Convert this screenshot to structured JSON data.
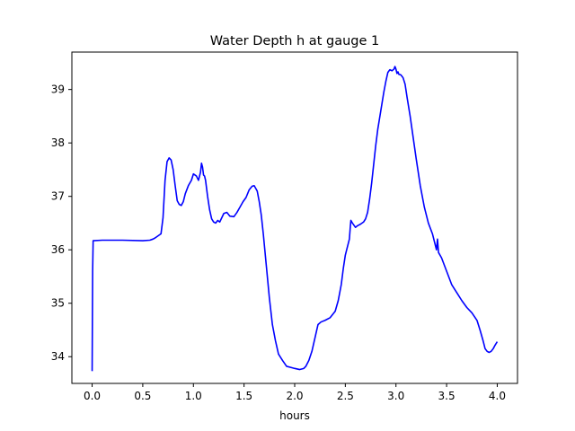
{
  "chart_data": {
    "type": "line",
    "title": "Water Depth h at gauge 1",
    "xlabel": "hours",
    "ylabel": "",
    "xlim": [
      -0.2,
      4.2
    ],
    "ylim": [
      33.5,
      39.7
    ],
    "xticks": [
      0.0,
      0.5,
      1.0,
      1.5,
      2.0,
      2.5,
      3.0,
      3.5,
      4.0
    ],
    "xtick_labels": [
      "0.0",
      "0.5",
      "1.0",
      "1.5",
      "2.0",
      "2.5",
      "3.0",
      "3.5",
      "4.0"
    ],
    "yticks": [
      34,
      35,
      36,
      37,
      38,
      39
    ],
    "ytick_labels": [
      "34",
      "35",
      "36",
      "37",
      "38",
      "39"
    ],
    "grid": false,
    "series": [
      {
        "color": "#0000ff",
        "x": [
          0.0,
          0.005,
          0.01,
          0.1,
          0.3,
          0.5,
          0.57,
          0.6,
          0.62,
          0.65,
          0.68,
          0.7,
          0.72,
          0.74,
          0.76,
          0.78,
          0.8,
          0.82,
          0.84,
          0.86,
          0.88,
          0.9,
          0.92,
          0.95,
          0.98,
          1.0,
          1.03,
          1.05,
          1.07,
          1.08,
          1.09,
          1.1,
          1.11,
          1.12,
          1.14,
          1.16,
          1.18,
          1.2,
          1.22,
          1.24,
          1.26,
          1.28,
          1.3,
          1.33,
          1.36,
          1.4,
          1.43,
          1.46,
          1.49,
          1.52,
          1.55,
          1.58,
          1.6,
          1.63,
          1.65,
          1.67,
          1.69,
          1.71,
          1.73,
          1.75,
          1.78,
          1.81,
          1.84,
          1.88,
          1.92,
          1.96,
          2.0,
          2.05,
          2.09,
          2.11,
          2.14,
          2.17,
          2.2,
          2.23,
          2.26,
          2.3,
          2.35,
          2.4,
          2.43,
          2.46,
          2.48,
          2.5,
          2.52,
          2.54,
          2.55,
          2.555,
          2.57,
          2.6,
          2.62,
          2.65,
          2.68,
          2.7,
          2.72,
          2.74,
          2.76,
          2.78,
          2.8,
          2.82,
          2.85,
          2.88,
          2.9,
          2.92,
          2.94,
          2.96,
          2.98,
          2.99,
          3.0,
          3.01,
          3.02,
          3.03,
          3.04,
          3.05,
          3.07,
          3.09,
          3.11,
          3.14,
          3.17,
          3.2,
          3.24,
          3.28,
          3.32,
          3.36,
          3.4,
          3.41,
          3.42,
          3.45,
          3.5,
          3.55,
          3.6,
          3.65,
          3.7,
          3.75,
          3.8,
          3.83,
          3.86,
          3.88,
          3.9,
          3.92,
          3.94,
          3.96,
          3.98,
          4.0
        ],
        "y": [
          33.73,
          35.6,
          36.17,
          36.18,
          36.18,
          36.17,
          36.18,
          36.2,
          36.22,
          36.26,
          36.3,
          36.6,
          37.3,
          37.65,
          37.72,
          37.68,
          37.5,
          37.2,
          36.92,
          36.85,
          36.83,
          36.9,
          37.05,
          37.2,
          37.3,
          37.42,
          37.38,
          37.3,
          37.45,
          37.62,
          37.55,
          37.4,
          37.38,
          37.3,
          37.0,
          36.75,
          36.58,
          36.52,
          36.5,
          36.55,
          36.52,
          36.6,
          36.68,
          36.7,
          36.63,
          36.62,
          36.7,
          36.8,
          36.9,
          36.98,
          37.12,
          37.19,
          37.2,
          37.1,
          36.9,
          36.65,
          36.3,
          35.9,
          35.5,
          35.1,
          34.6,
          34.3,
          34.05,
          33.93,
          33.82,
          33.8,
          33.78,
          33.76,
          33.78,
          33.82,
          33.93,
          34.1,
          34.35,
          34.6,
          34.65,
          34.68,
          34.73,
          34.85,
          35.05,
          35.35,
          35.65,
          35.9,
          36.05,
          36.2,
          36.45,
          36.55,
          36.5,
          36.42,
          36.45,
          36.48,
          36.52,
          36.58,
          36.7,
          36.95,
          37.25,
          37.6,
          37.95,
          38.25,
          38.6,
          38.95,
          39.15,
          39.32,
          39.37,
          39.35,
          39.38,
          39.43,
          39.38,
          39.3,
          39.33,
          39.28,
          39.28,
          39.27,
          39.22,
          39.1,
          38.85,
          38.5,
          38.1,
          37.7,
          37.2,
          36.8,
          36.5,
          36.3,
          36.0,
          36.2,
          35.95,
          35.85,
          35.6,
          35.35,
          35.2,
          35.05,
          34.92,
          34.82,
          34.68,
          34.5,
          34.3,
          34.15,
          34.1,
          34.08,
          34.1,
          34.15,
          34.22,
          34.28
        ]
      }
    ]
  }
}
